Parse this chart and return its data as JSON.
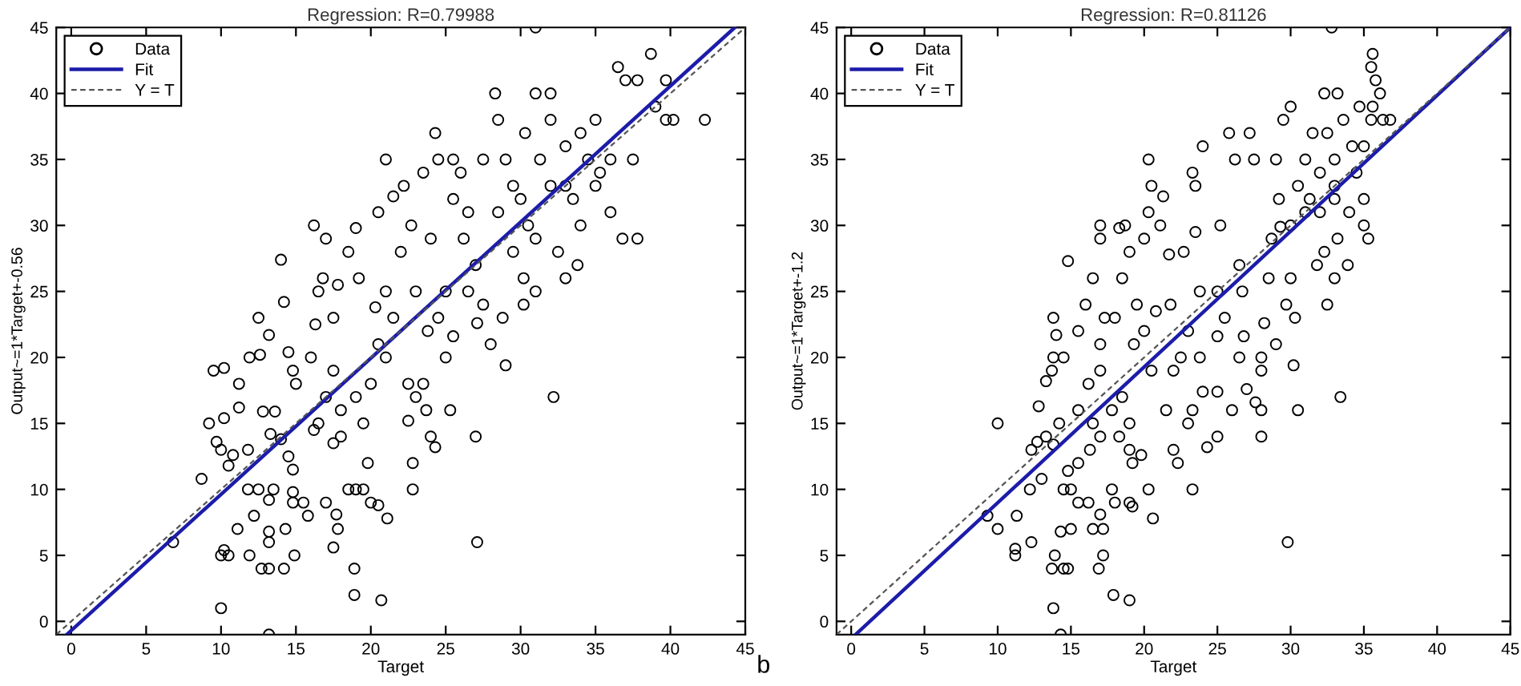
{
  "chart_data": [
    {
      "type": "scatter",
      "title": "Regression: R=0.79988",
      "xlabel": "Target",
      "ylabel": "Output~=1*Target+-0.56",
      "xlim": [
        -1,
        45
      ],
      "ylim": [
        -1,
        45
      ],
      "xticks": [
        0,
        5,
        10,
        15,
        20,
        25,
        30,
        35,
        40,
        45
      ],
      "yticks": [
        0,
        5,
        10,
        15,
        20,
        25,
        30,
        35,
        40,
        45
      ],
      "legend": "top left",
      "series": [
        {
          "name": "Data",
          "marker": "circle",
          "color": "#000000",
          "x": [
            13.2,
            10,
            18.9,
            20.7,
            18.9,
            12.7,
            13.2,
            14.2,
            10,
            10.5,
            11.9,
            14.9,
            10.2,
            6.8,
            13.2,
            17.5,
            27.1,
            13.2,
            11.1,
            14.3,
            17.8,
            21.1,
            12.2,
            15.8,
            17.7,
            8.7,
            11.8,
            12.5,
            13.5,
            14.8,
            15.5,
            17,
            18.5,
            19,
            19.5,
            20,
            20.5,
            22.8,
            13.2,
            14.8,
            9.2,
            9.7,
            10,
            10.2,
            10.5,
            10.8,
            11.2,
            11.8,
            12.8,
            13.3,
            13.6,
            14,
            14.5,
            14.8,
            9.5,
            10.2,
            11.2,
            11.9,
            12.6,
            12.5,
            13.2,
            14,
            14.2,
            14.5,
            14.8,
            15,
            16,
            16.3,
            16.5,
            16.8,
            16.2,
            17,
            17.5,
            17.8,
            18.5,
            19,
            19.2,
            16.2,
            16.5,
            17,
            17.5,
            18,
            18,
            17.5,
            19,
            19.5,
            19.8,
            20,
            20.5,
            20.3,
            21,
            21,
            21.5,
            20.5,
            21,
            21.5,
            22,
            22.2,
            22.7,
            23,
            22.5,
            23,
            22.8,
            22.5,
            23.5,
            23.7,
            24,
            24.3,
            23.8,
            24.5,
            25,
            25,
            25.3,
            25.5,
            24,
            23.5,
            24.3,
            24.5,
            25.5,
            25.5,
            26.2,
            26.5,
            26.5,
            27,
            27.1,
            27,
            28,
            29,
            27.5,
            27.5,
            28.5,
            28.5,
            29,
            29.5,
            30,
            30.5,
            30.2,
            30.2,
            31,
            31,
            30.3,
            31,
            31.3,
            31,
            32,
            32.2,
            32,
            32.5,
            33,
            33,
            33,
            33.5,
            33.8,
            34,
            34,
            34.5,
            35,
            35,
            35.3,
            36,
            36,
            36.5,
            36.8,
            37,
            37.5,
            37.8,
            37.8,
            38.7,
            39,
            39.7,
            39.7,
            40.2,
            42.3,
            28.3,
            32,
            29.5,
            28.8,
            26
          ],
          "values": [
            -1,
            1,
            2,
            1.6,
            4,
            4,
            4,
            4,
            5,
            5,
            5,
            5,
            5.4,
            6,
            6,
            5.6,
            6,
            6.8,
            7,
            7,
            7,
            7.8,
            8,
            8,
            8.1,
            10.8,
            10,
            10,
            10,
            9.8,
            9,
            9,
            10,
            10,
            10,
            9,
            8.8,
            10,
            9.2,
            9,
            15,
            13.6,
            13,
            15.4,
            11.8,
            12.6,
            16.2,
            13,
            15.9,
            14.2,
            15.9,
            13.8,
            12.5,
            11.5,
            19,
            19.2,
            18,
            20,
            20.2,
            23,
            21.7,
            27.4,
            24.2,
            20.4,
            19,
            18,
            20,
            22.5,
            25,
            26,
            30,
            29,
            23,
            25.5,
            28,
            29.8,
            26,
            14.5,
            15,
            17,
            19,
            16,
            14,
            13.5,
            17,
            15,
            12,
            18,
            21,
            23.8,
            20,
            25,
            23,
            31,
            35,
            32.2,
            28,
            33,
            30,
            25,
            18,
            17,
            12,
            15.2,
            18,
            16,
            14,
            13.2,
            22,
            23,
            25,
            20,
            16,
            21.6,
            29,
            34,
            37,
            35,
            35,
            32,
            29,
            31,
            25,
            27,
            22.6,
            14,
            21,
            19.4,
            24,
            35,
            31,
            38,
            35,
            33,
            32,
            30,
            26,
            24,
            25,
            29,
            37,
            40,
            35,
            45,
            38,
            17,
            33,
            28,
            36,
            33,
            26,
            32,
            27,
            30,
            37,
            35,
            38,
            33,
            34,
            31,
            35,
            42,
            29,
            41,
            35,
            41,
            29,
            43,
            39,
            41,
            38,
            38,
            38,
            40,
            40,
            28,
            23,
            34
          ]
        },
        {
          "name": "Fit",
          "type": "line",
          "color": "#1c1caa",
          "line_style": "solid",
          "x": [
            -0.3,
            44.3
          ],
          "values": [
            -1,
            45
          ]
        },
        {
          "name": "Y = T",
          "type": "line",
          "color": "#555555",
          "line_style": "dashed",
          "x": [
            -1,
            45
          ],
          "values": [
            -1,
            45
          ]
        }
      ]
    },
    {
      "type": "scatter",
      "title": "Regression: R=0.81126",
      "xlabel": "Target",
      "ylabel": "Output~=1*Target+-1.2",
      "xlim": [
        -1,
        45
      ],
      "ylim": [
        -1,
        45
      ],
      "xticks": [
        0,
        5,
        10,
        15,
        20,
        25,
        30,
        35,
        40,
        45
      ],
      "yticks": [
        0,
        5,
        10,
        15,
        20,
        25,
        30,
        35,
        40,
        45
      ],
      "legend": "top left",
      "annotations": [
        "b"
      ],
      "series": [
        {
          "name": "Data",
          "marker": "circle",
          "color": "#000000",
          "x": [
            14.3,
            13.8,
            17.9,
            19,
            13.7,
            14.5,
            14.8,
            16.9,
            11.2,
            11.2,
            13.9,
            17.2,
            12.3,
            14.3,
            15,
            16.5,
            17,
            17.2,
            9.3,
            10,
            11.3,
            20.6,
            29.8,
            12.2,
            13,
            14.5,
            15,
            15.5,
            16.2,
            17.8,
            18,
            19,
            19.2,
            20.3,
            23.3,
            10,
            12.3,
            12.7,
            13.3,
            13.8,
            14.2,
            14.8,
            15.5,
            16.3,
            17,
            18.3,
            19,
            19.2,
            19.8,
            12.8,
            13.3,
            13.7,
            13.8,
            13.8,
            14,
            14.5,
            14.8,
            15.5,
            16,
            16.5,
            16.2,
            15.5,
            16.5,
            17,
            17,
            17.3,
            17,
            17,
            18,
            17.8,
            18.3,
            18.7,
            18.5,
            19,
            19.5,
            19.3,
            18.5,
            19,
            20,
            20,
            20.3,
            20.3,
            20.5,
            20.5,
            20.8,
            21.1,
            21.3,
            21.5,
            21.7,
            21.8,
            22,
            22.3,
            22,
            22.5,
            22.7,
            23,
            23,
            23.5,
            23.3,
            23.8,
            23.3,
            23.5,
            24,
            23.8,
            24.3,
            24,
            25,
            25,
            25,
            25,
            25.2,
            25.5,
            25.8,
            26,
            26.2,
            26.5,
            26.5,
            26.7,
            26.8,
            27,
            27.2,
            27.5,
            27.6,
            28,
            28,
            28,
            28,
            28.5,
            28.2,
            28.7,
            29,
            29.2,
            29.3,
            29,
            29.7,
            30,
            30,
            30,
            30.2,
            30.3,
            30.5,
            30.5,
            31,
            31,
            31.5,
            31.8,
            32,
            32,
            32.3,
            32.3,
            32.5,
            32.5,
            33,
            33,
            33.2,
            33,
            33.4,
            33.2,
            33.6,
            33.9,
            34,
            34.2,
            34.5,
            34.7,
            35,
            35,
            35.3,
            35,
            35.5,
            35.6,
            35.6,
            35.8,
            35.5,
            36.1,
            36.3,
            36.8,
            32.8,
            33,
            29.5,
            31.3
          ],
          "values": [
            -1,
            1,
            2,
            1.6,
            4,
            4,
            4,
            4,
            5.5,
            5,
            5,
            5,
            6,
            6.8,
            7,
            7,
            8.1,
            7,
            8,
            7,
            8,
            7.8,
            6,
            10,
            10.8,
            10,
            10,
            9,
            9,
            10,
            9,
            9,
            8.7,
            10,
            10,
            15,
            13,
            13.6,
            14,
            13.4,
            15,
            11.4,
            12,
            13,
            14,
            14,
            13,
            12,
            12.6,
            16.3,
            18.2,
            19,
            20,
            23,
            21.7,
            20,
            27.3,
            22,
            24,
            26,
            18,
            16,
            15,
            19,
            21,
            23,
            30,
            29,
            23,
            16,
            29.8,
            30,
            26,
            28,
            24,
            21,
            17,
            15,
            22,
            29,
            31,
            35,
            33,
            19,
            23.5,
            30,
            32.2,
            16,
            27.8,
            24,
            13,
            12,
            19,
            20,
            28,
            15,
            22,
            29.5,
            16,
            20,
            34,
            33,
            36,
            25,
            13.2,
            17.4,
            21.6,
            17.4,
            14,
            25,
            30,
            23,
            37,
            16,
            35,
            20,
            27,
            25,
            21.6,
            17.6,
            37,
            35,
            16.6,
            20,
            16,
            19,
            14,
            26,
            22.6,
            29,
            35,
            32,
            29.9,
            21,
            24,
            26,
            39,
            30,
            19.4,
            23,
            16,
            33,
            35,
            31,
            37,
            27,
            34,
            31,
            40,
            28,
            24,
            37,
            33,
            26,
            29,
            35,
            17,
            40,
            38,
            27,
            31,
            36,
            34,
            39,
            32,
            30,
            29,
            36,
            38,
            43,
            39,
            41,
            42,
            40,
            38,
            38,
            45,
            32,
            38,
            32
          ]
        },
        {
          "name": "Fit",
          "type": "line",
          "color": "#1c1caa",
          "line_style": "solid",
          "x": [
            0.3,
            45
          ],
          "values": [
            -1,
            45
          ]
        },
        {
          "name": "Y = T",
          "type": "line",
          "color": "#555555",
          "line_style": "dashed",
          "x": [
            -1,
            45
          ],
          "values": [
            -1,
            45
          ]
        }
      ]
    }
  ]
}
